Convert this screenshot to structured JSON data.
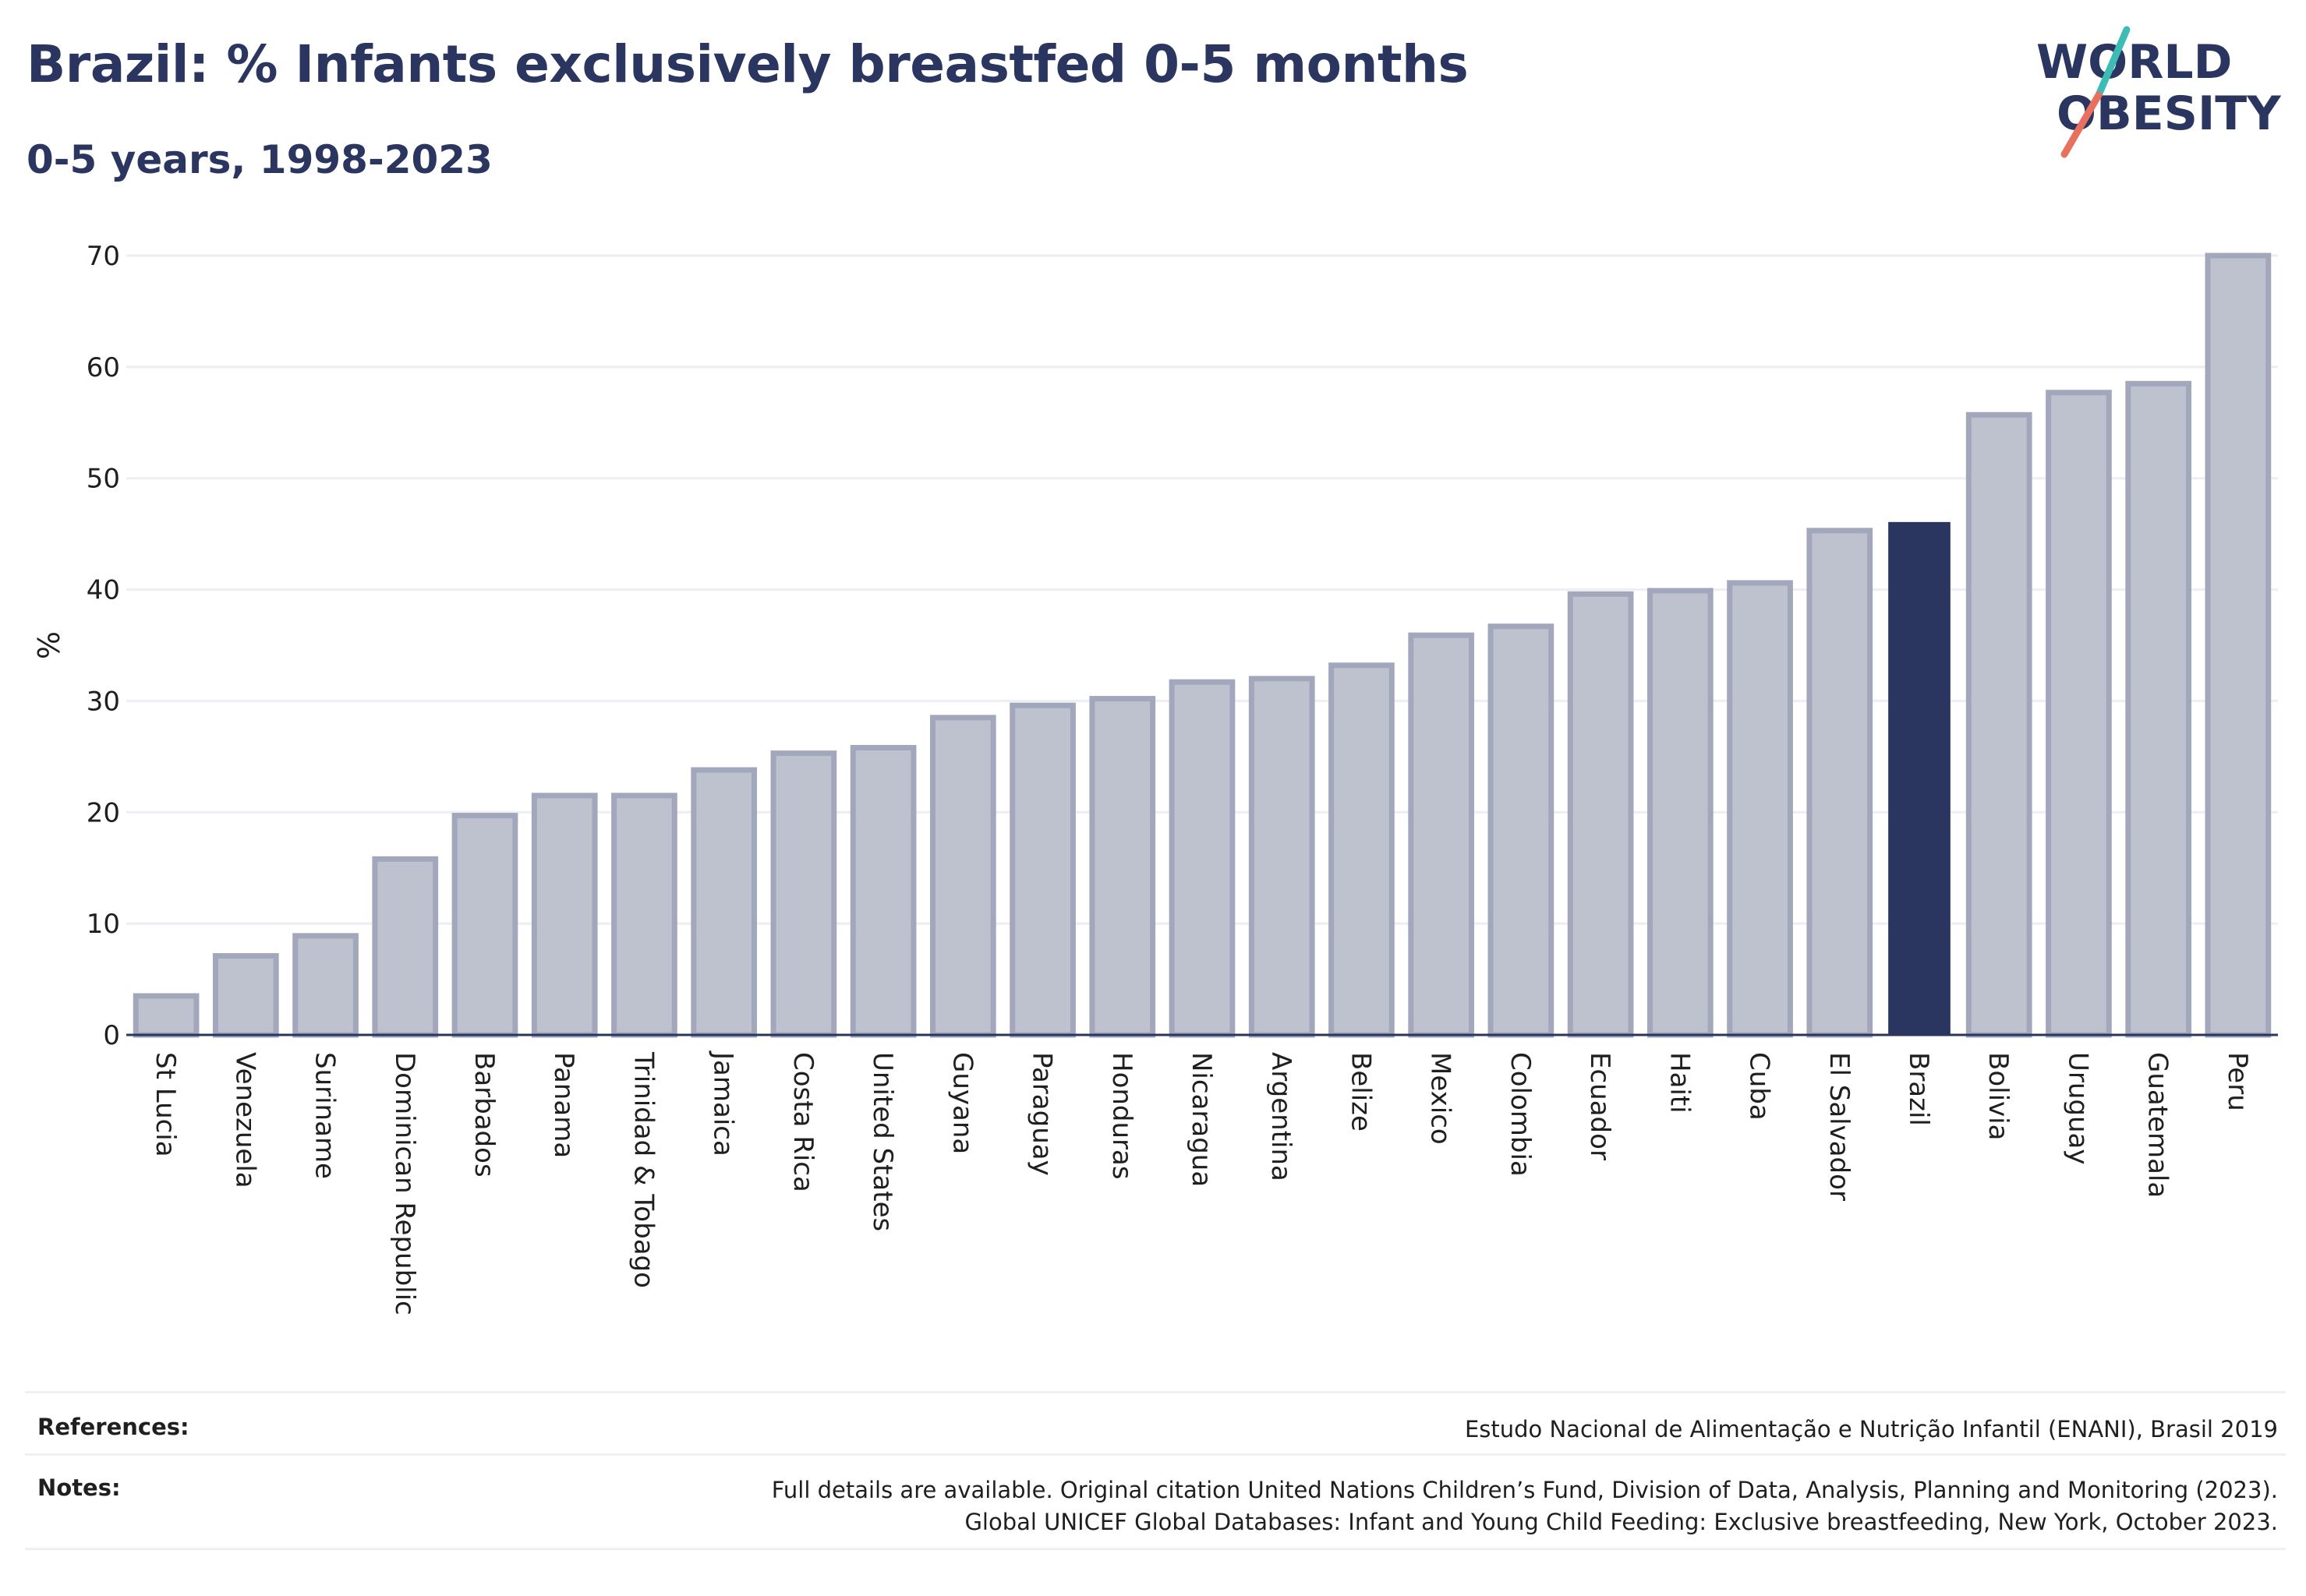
{
  "header": {
    "title": "Brazil: % Infants exclusively breastfed 0-5 months",
    "subtitle": "0-5 years, 1998-2023"
  },
  "logo": {
    "line1": "WORLD",
    "line2": "OBESITY"
  },
  "colors": {
    "highlight": "#2a3560",
    "bar_fill": "#bec1ce",
    "bar_stroke": "#a2a7bc",
    "gridline": "#eceef3",
    "axis": "#2a3560",
    "logo_teal": "#3cbcb4",
    "logo_coral": "#e8705f"
  },
  "chart_data": {
    "type": "bar",
    "title": "Brazil: % Infants exclusively breastfed 0-5 months",
    "subtitle": "0-5 years, 1998-2023",
    "xlabel": "",
    "ylabel": "%",
    "ylim": [
      0,
      70
    ],
    "yticks": [
      0,
      10,
      20,
      30,
      40,
      50,
      60,
      70
    ],
    "grid": true,
    "highlight": "Brazil",
    "categories": [
      "St Lucia",
      "Venezuela",
      "Suriname",
      "Dominican Republic",
      "Barbados",
      "Panama",
      "Trinidad & Tobago",
      "Jamaica",
      "Costa Rica",
      "United States",
      "Guyana",
      "Paraguay",
      "Honduras",
      "Nicaragua",
      "Argentina",
      "Belize",
      "Mexico",
      "Colombia",
      "Ecuador",
      "Haiti",
      "Cuba",
      "El Salvador",
      "Brazil",
      "Bolivia",
      "Uruguay",
      "Guatemala",
      "Peru"
    ],
    "values": [
      3.5,
      7.1,
      8.9,
      15.8,
      19.7,
      21.5,
      21.5,
      23.8,
      25.3,
      25.8,
      28.5,
      29.6,
      30.2,
      31.7,
      32.0,
      33.2,
      35.9,
      36.7,
      39.6,
      39.9,
      40.6,
      45.3,
      46.0,
      55.7,
      57.7,
      58.5,
      70.0
    ]
  },
  "footer": {
    "references_label": "References:",
    "references_text": "Estudo Nacional de Alimentação e Nutrição Infantil (ENANI), Brasil 2019",
    "notes_label": "Notes:",
    "notes_line1": "Full details are available. Original citation United Nations Children’s Fund, Division of Data, Analysis, Planning and Monitoring (2023).",
    "notes_line2": "Global UNICEF Global Databases: Infant and Young Child Feeding: Exclusive breastfeeding, New York, October 2023."
  }
}
